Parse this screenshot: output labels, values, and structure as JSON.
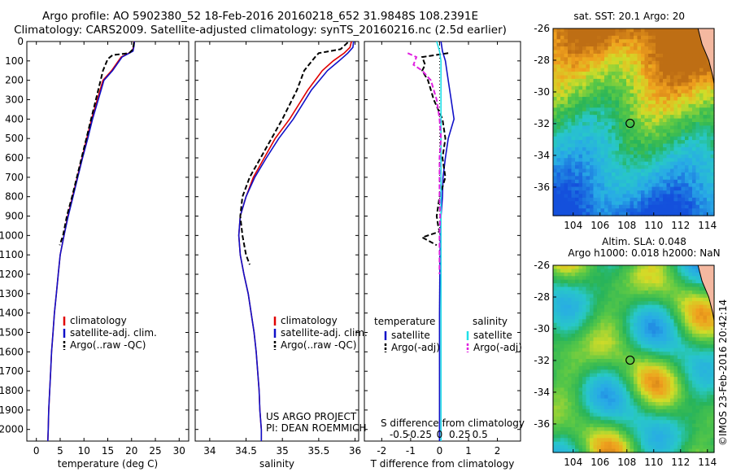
{
  "title_line1": "Argo profile: AO 5902380_52 18-Feb-2016 20160218_652 31.9848S 108.2391E",
  "title_line2": "Climatology: CARS2009. Satellite-adjusted climatology: synTS_20160216.nc (2.5d earlier)",
  "credit": "©IMOS 23-Feb-2016 20:42:14",
  "colors": {
    "climatology": "#e00000",
    "satellite": "#1010c8",
    "argo": "#000000",
    "sat_salinity": "#20e0e8",
    "argo_salinity": "#e020e0"
  },
  "chart_data": [
    {
      "type": "line",
      "name": "temperature-panel",
      "xlabel": "temperature (deg C)",
      "ylabel": "",
      "xlim": [
        -2,
        32
      ],
      "ylim": [
        2060,
        0
      ],
      "xticks": [
        "0",
        "5",
        "10",
        "15",
        "20",
        "25",
        "30"
      ],
      "yticks": [
        "0",
        "100",
        "200",
        "300",
        "400",
        "500",
        "600",
        "700",
        "800",
        "900",
        "1000",
        "1100",
        "1200",
        "1300",
        "1400",
        "1500",
        "1600",
        "1700",
        "1800",
        "1900",
        "2000"
      ],
      "legend": [
        "climatology",
        "satellite-adj. clim.",
        "Argo(..raw -QC)"
      ],
      "series": [
        {
          "name": "climatology",
          "style": "solid",
          "color": "#e00000",
          "x": [
            20.5,
            20.4,
            20.2,
            17.8,
            15.8,
            14.0,
            12.8,
            11.6,
            10.6,
            9.6,
            8.6,
            7.6,
            6.6,
            5.8,
            5.0,
            4.6,
            4.2,
            3.8,
            3.5,
            3.2,
            3.0,
            2.8,
            2.6,
            2.5,
            2.4
          ],
          "y": [
            0,
            25,
            50,
            80,
            150,
            200,
            300,
            400,
            500,
            600,
            700,
            800,
            900,
            1000,
            1100,
            1200,
            1300,
            1400,
            1500,
            1600,
            1700,
            1800,
            1900,
            2000,
            2060
          ]
        },
        {
          "name": "satellite-adj. clim.",
          "style": "solid",
          "color": "#1010c8",
          "x": [
            20.6,
            20.5,
            20.3,
            18.0,
            16.0,
            14.2,
            13.0,
            11.8,
            10.8,
            9.7,
            8.7,
            7.7,
            6.7,
            5.8,
            5.0,
            4.6,
            4.2,
            3.8,
            3.5,
            3.2,
            3.0,
            2.8,
            2.6,
            2.5,
            2.4
          ],
          "y": [
            0,
            25,
            50,
            80,
            150,
            200,
            300,
            400,
            500,
            600,
            700,
            800,
            900,
            1000,
            1100,
            1200,
            1300,
            1400,
            1500,
            1600,
            1700,
            1800,
            1900,
            2000,
            2060
          ]
        },
        {
          "name": "Argo(..raw -QC)",
          "style": "dashed",
          "color": "#000000",
          "x": [
            20.5,
            20.3,
            19.5,
            16.0,
            15.0,
            14.0,
            13.0,
            11.5,
            10.5,
            9.5,
            8.5,
            7.5,
            6.4,
            5.6,
            4.9
          ],
          "y": [
            5,
            40,
            60,
            70,
            90,
            150,
            250,
            400,
            500,
            600,
            700,
            800,
            900,
            1000,
            1050
          ]
        }
      ]
    },
    {
      "type": "line",
      "name": "salinity-panel",
      "xlabel": "salinity",
      "ylabel": "",
      "xlim": [
        33.8,
        36.05
      ],
      "ylim": [
        2060,
        0
      ],
      "xticks": [
        "34",
        "34.5",
        "35",
        "35.5",
        "36"
      ],
      "legend": [
        "climatology",
        "satellite-adj. clim.",
        "Argo(..raw -QC)"
      ],
      "annotation": [
        "US ARGO PROJECT",
        "PI: DEAN ROEMMICH"
      ],
      "series": [
        {
          "name": "climatology",
          "style": "solid",
          "color": "#e00000",
          "x": [
            35.95,
            35.93,
            35.85,
            35.7,
            35.55,
            35.35,
            35.1,
            34.9,
            34.75,
            34.6,
            34.5,
            34.42,
            34.4,
            34.42,
            34.47,
            34.53,
            34.57,
            34.61,
            34.64,
            34.66,
            34.68,
            34.69,
            34.7,
            34.71,
            34.71
          ],
          "y": [
            0,
            30,
            60,
            100,
            150,
            250,
            400,
            500,
            600,
            700,
            800,
            900,
            1000,
            1100,
            1200,
            1300,
            1400,
            1500,
            1600,
            1700,
            1800,
            1900,
            1950,
            2000,
            2060
          ]
        },
        {
          "name": "satellite-adj. clim.",
          "style": "solid",
          "color": "#1010c8",
          "x": [
            35.98,
            35.97,
            35.9,
            35.78,
            35.62,
            35.4,
            35.15,
            34.95,
            34.78,
            34.62,
            34.5,
            34.42,
            34.4,
            34.42,
            34.47,
            34.53,
            34.57,
            34.61,
            34.64,
            34.66,
            34.68,
            34.69,
            34.7,
            34.71,
            34.71
          ],
          "y": [
            0,
            30,
            60,
            100,
            150,
            250,
            400,
            500,
            600,
            700,
            800,
            900,
            1000,
            1100,
            1200,
            1300,
            1400,
            1500,
            1600,
            1700,
            1800,
            1900,
            1950,
            2000,
            2060
          ]
        },
        {
          "name": "Argo(..raw -QC)",
          "style": "dashed",
          "color": "#000000",
          "x": [
            35.9,
            35.8,
            35.5,
            35.45,
            35.3,
            35.2,
            35.0,
            34.85,
            34.7,
            34.55,
            34.45,
            34.42,
            34.45,
            34.5,
            34.55
          ],
          "y": [
            5,
            40,
            60,
            80,
            150,
            250,
            400,
            500,
            600,
            700,
            800,
            900,
            1000,
            1100,
            1150
          ]
        }
      ]
    },
    {
      "type": "line",
      "name": "difference-panel",
      "xlabel": "T difference from climatology",
      "x2label": "S difference from climatology",
      "xlim": [
        -2.6,
        2.8
      ],
      "ylim": [
        2060,
        0
      ],
      "xticks": [
        "-2",
        "-1",
        "0",
        "1",
        "2"
      ],
      "x2ticks": [
        "-0.5",
        "-0.25",
        "0",
        "0.25",
        "0.5"
      ],
      "legend_left_title": "temperature",
      "legend_right_title": "salinity",
      "legend_left": [
        "satellite",
        "Argo(-adj)"
      ],
      "legend_right": [
        "satellite",
        "Argo(-adj)"
      ],
      "series": [
        {
          "name": "satellite",
          "style": "solid",
          "color": "#1010c8",
          "x": [
            0.05,
            0.1,
            0.2,
            0.3,
            0.4,
            0.5,
            0.3,
            0.2,
            0.12,
            0.1,
            0.05,
            0.03,
            0.02,
            0.01,
            0.0,
            0.0,
            0.0,
            0.0,
            0.0,
            0.0
          ],
          "y": [
            0,
            50,
            100,
            200,
            300,
            400,
            500,
            600,
            700,
            800,
            900,
            1000,
            1100,
            1200,
            1400,
            1600,
            1800,
            1900,
            2000,
            2060
          ]
        },
        {
          "name": "Argo(-adj)",
          "style": "dashed",
          "color": "#000000",
          "x": [
            0.3,
            -0.6,
            -0.5,
            -0.6,
            -0.4,
            -0.2,
            0.1,
            0.2,
            0.1,
            0.2,
            0.0,
            -0.1,
            -0.05,
            0.0,
            -0.6,
            -0.1
          ],
          "y": [
            60,
            80,
            120,
            150,
            200,
            300,
            400,
            500,
            600,
            700,
            800,
            900,
            950,
            980,
            1010,
            1050
          ]
        },
        {
          "name": "satellite",
          "style": "solid",
          "color": "#20e0e8",
          "x": [
            -0.1,
            0.0,
            0.05,
            0.05,
            0.05,
            0.05,
            0.05,
            0.05,
            0.05,
            0.05,
            0.05,
            0.05,
            0.05,
            0.05,
            0.05,
            0.05,
            0.05,
            0.05,
            0.05,
            0.05
          ],
          "y": [
            0,
            50,
            100,
            200,
            300,
            400,
            500,
            600,
            700,
            800,
            900,
            1000,
            1100,
            1200,
            1400,
            1600,
            1800,
            1900,
            2000,
            2060
          ]
        },
        {
          "name": "Argo(-adj)",
          "style": "dashed",
          "color": "#e020e0",
          "x": [
            -1.1,
            -0.8,
            -0.9,
            -0.6,
            -0.3,
            -0.1,
            0.0,
            0.05,
            0.0,
            0.0,
            0.0,
            0.02,
            0.0,
            0.0,
            0.0
          ],
          "y": [
            60,
            80,
            120,
            150,
            200,
            300,
            400,
            500,
            600,
            700,
            800,
            900,
            1000,
            1100,
            1200
          ]
        }
      ]
    },
    {
      "type": "heatmap",
      "name": "sst-map",
      "title": "sat. SST: 20.1  Argo: 20",
      "xlim": [
        102.5,
        114.5
      ],
      "ylim": [
        -37.8,
        -26
      ],
      "xticks": [
        "104",
        "106",
        "108",
        "110",
        "112",
        "114"
      ],
      "yticks": [
        "-26",
        "-28",
        "-30",
        "-32",
        "-34",
        "-36"
      ],
      "profile_marker": {
        "lon": 108.24,
        "lat": -31.98
      }
    },
    {
      "type": "heatmap",
      "name": "sla-map",
      "title": "Altim. SLA: 0.048",
      "subtitle": "Argo h1000: 0.018 h2000: NaN",
      "xlim": [
        102.5,
        114.5
      ],
      "ylim": [
        -37.8,
        -26
      ],
      "xticks": [
        "104",
        "106",
        "108",
        "110",
        "112",
        "114"
      ],
      "yticks": [
        "-26",
        "-28",
        "-30",
        "-32",
        "-34",
        "-36"
      ],
      "profile_marker": {
        "lon": 108.24,
        "lat": -31.98
      }
    }
  ]
}
